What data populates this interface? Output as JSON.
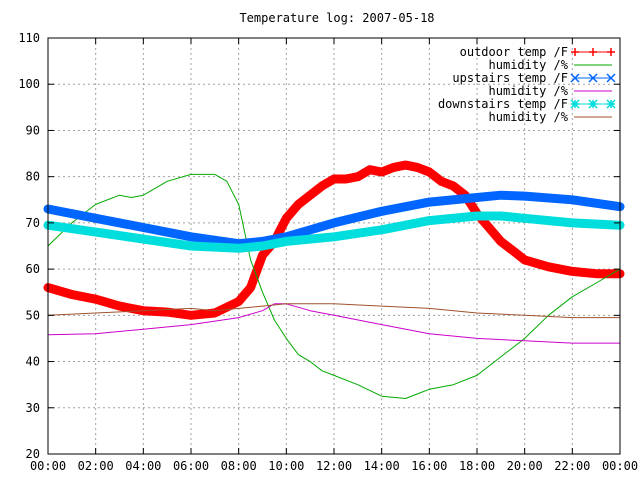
{
  "chart_data": {
    "type": "line",
    "title": "Temperature log: 2007-05-18",
    "xlabel": "",
    "ylabel": "",
    "xlim": [
      0,
      24
    ],
    "ylim": [
      20,
      110
    ],
    "grid": true,
    "legend_position": "top-right",
    "x_ticks": [
      "00:00",
      "02:00",
      "04:00",
      "06:00",
      "08:00",
      "10:00",
      "12:00",
      "14:00",
      "16:00",
      "18:00",
      "20:00",
      "22:00",
      "00:00"
    ],
    "y_ticks": [
      "20",
      "30",
      "40",
      "50",
      "60",
      "70",
      "80",
      "90",
      "100",
      "110"
    ],
    "series": [
      {
        "name": "outdoor temp /F",
        "color": "#ff0000",
        "marker": "plus",
        "x": [
          0,
          1,
          2,
          3,
          4,
          5,
          6,
          7,
          8,
          8.5,
          9,
          9.5,
          10,
          10.5,
          11,
          11.5,
          12,
          12.5,
          13,
          13.5,
          14,
          14.5,
          15,
          15.5,
          16,
          16.5,
          17,
          17.5,
          18,
          18.5,
          19,
          19.5,
          20,
          21,
          22,
          23,
          24
        ],
        "y": [
          56,
          54.5,
          53.5,
          52,
          51,
          50.7,
          50,
          50.5,
          53,
          56,
          63,
          66,
          71,
          74,
          76,
          78,
          79.5,
          79.5,
          80,
          81.5,
          81,
          82,
          82.5,
          82,
          81,
          79,
          78,
          76,
          72,
          69,
          66,
          64,
          62,
          60.5,
          59.5,
          59,
          59
        ]
      },
      {
        "name": "humidity /%",
        "color": "#00aa00",
        "marker": "none",
        "x": [
          0,
          1,
          2,
          3,
          3.5,
          4,
          5,
          6,
          7,
          7.5,
          8,
          8.5,
          9,
          9.5,
          10,
          10.5,
          11,
          11.5,
          12,
          13,
          14,
          15,
          15.5,
          16,
          17,
          18,
          19,
          20,
          21,
          22,
          23,
          24
        ],
        "y": [
          65,
          70,
          74,
          76,
          75.5,
          76,
          79,
          80.5,
          80.5,
          79,
          74,
          62,
          55,
          49,
          45,
          41.5,
          40,
          38,
          37,
          35,
          32.5,
          32,
          33,
          34,
          35,
          37,
          41,
          45,
          50,
          54,
          57,
          60
        ]
      },
      {
        "name": "upstairs temp /F",
        "color": "#0066ff",
        "marker": "cross",
        "x": [
          0,
          2,
          4,
          6,
          8,
          9,
          10,
          12,
          14,
          16,
          18,
          19,
          20,
          22,
          24
        ],
        "y": [
          73,
          71,
          69,
          67,
          65.5,
          66,
          67,
          70,
          72.5,
          74.5,
          75.5,
          76,
          75.8,
          75,
          73.5
        ]
      },
      {
        "name": "humidity /%",
        "color": "#cc00cc",
        "marker": "none",
        "x": [
          0,
          2,
          4,
          6,
          8,
          9,
          9.5,
          10,
          11,
          11.5,
          12,
          14,
          16,
          18,
          20,
          22,
          24
        ],
        "y": [
          45.8,
          46,
          47,
          48,
          49.5,
          51,
          52.5,
          52.5,
          51,
          50.5,
          50,
          48,
          46,
          45,
          44.5,
          44,
          44
        ]
      },
      {
        "name": "downstairs temp /F",
        "color": "#00dddd",
        "marker": "star",
        "x": [
          0,
          2,
          4,
          6,
          8,
          9,
          10,
          12,
          14,
          16,
          18,
          19,
          20,
          22,
          24
        ],
        "y": [
          69.5,
          68,
          66.5,
          65,
          64.5,
          65,
          66,
          67,
          68.5,
          70.5,
          71.5,
          71.5,
          71,
          70,
          69.5
        ]
      },
      {
        "name": "humidity /%",
        "color": "#a0522d",
        "marker": "none",
        "x": [
          0,
          2,
          4,
          6,
          7,
          8,
          9,
          10,
          12,
          14,
          16,
          18,
          20,
          22,
          24
        ],
        "y": [
          50,
          50.5,
          51,
          51.5,
          51,
          51.5,
          52,
          52.5,
          52.5,
          52,
          51.5,
          50.5,
          50,
          49.5,
          49.5
        ]
      }
    ]
  }
}
